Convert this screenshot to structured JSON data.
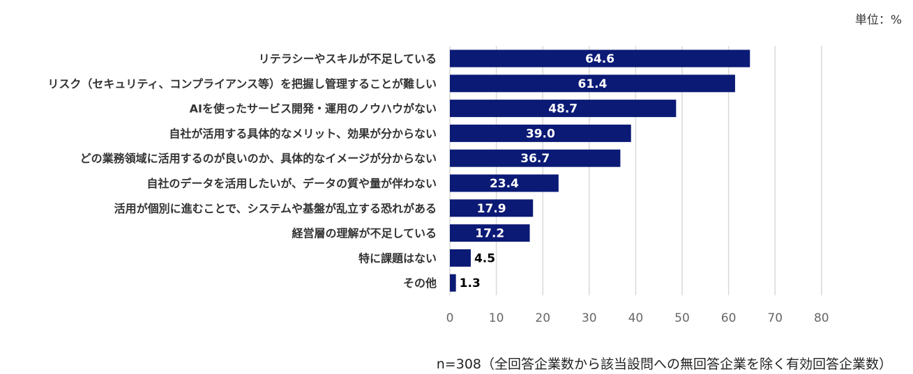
{
  "unit_label": "単位：%",
  "note": "n=308（全回答企業数から該当設問への無回答企業を除く有効回答企業数）",
  "colors": {
    "bar": "#0b1a75",
    "grid": "#d9d9d9",
    "label": "#333333",
    "tick": "#666666",
    "value_inside": "#ffffff",
    "value_outside": "#000000"
  },
  "chart_data": {
    "type": "bar",
    "orientation": "horizontal",
    "categories": [
      "リテラシーやスキルが不足している",
      "リスク（セキュリティ、コンプライアンス等）を把握し管理することが難しい",
      "AIを使ったサービス開発・運用のノウハウがない",
      "自社が活用する具体的なメリット、効果が分からない",
      "どの業務領域に活用するのが良いのか、具体的なイメージが分からない",
      "自社のデータを活用したいが、データの質や量が伴わない",
      "活用が個別に進むことで、システムや基盤が乱立する恐れがある",
      "経営層の理解が不足している",
      "特に課題はない",
      "その他"
    ],
    "values": [
      64.6,
      61.4,
      48.7,
      39.0,
      36.7,
      23.4,
      17.9,
      17.2,
      4.5,
      1.3
    ],
    "value_labels": [
      "64.6",
      "61.4",
      "48.7",
      "39.0",
      "36.7",
      "23.4",
      "17.9",
      "17.2",
      "4.5",
      "1.3"
    ],
    "xlim": [
      0,
      80
    ],
    "xticks": [
      "0",
      "10",
      "20",
      "30",
      "40",
      "50",
      "60",
      "70",
      "80"
    ],
    "grid": true,
    "legend": false
  }
}
